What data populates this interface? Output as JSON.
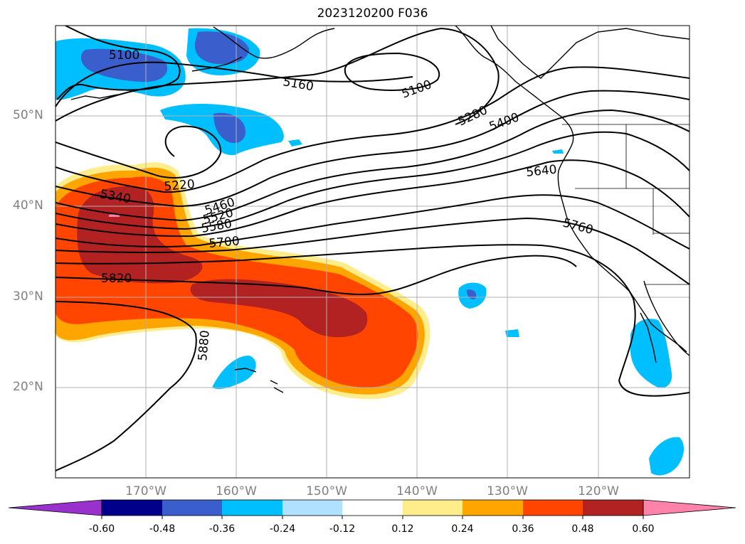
{
  "title": "2023120200 F036",
  "lat_labels": [
    "50°N",
    "40°N",
    "30°N",
    "20°N"
  ],
  "lon_labels": [
    "170°W",
    "160°W",
    "150°W",
    "140°W",
    "130°W",
    "120°W"
  ],
  "colorbar": {
    "labels": [
      "-0.60",
      "-0.48",
      "-0.36",
      "-0.24",
      "-0.12",
      "0.12",
      "0.24",
      "0.36",
      "0.48",
      "0.60"
    ],
    "colors": [
      "#9932cc",
      "#00008b",
      "#3a5fcd",
      "#00bfff",
      "#b0e2ff",
      "#ffffff",
      "#ffec8b",
      "#ffa500",
      "#ff4500",
      "#b22222",
      "#ff82ab"
    ]
  },
  "contour_labels": [
    "5100",
    "5160",
    "5100",
    "5280",
    "5400",
    "5640",
    "5220",
    "5340",
    "5460",
    "5520",
    "5580",
    "5700",
    "5820",
    "5880",
    "5760"
  ],
  "colors": {
    "grid": "#b0b0b0",
    "contour": "#000000",
    "axis_text": "#808080"
  }
}
